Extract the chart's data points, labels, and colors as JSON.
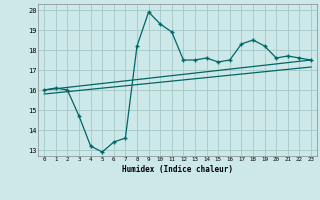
{
  "xlabel": "Humidex (Indice chaleur)",
  "ylabel": "",
  "xlim": [
    -0.5,
    23.5
  ],
  "ylim": [
    12.7,
    20.3
  ],
  "xticks": [
    0,
    1,
    2,
    3,
    4,
    5,
    6,
    7,
    8,
    9,
    10,
    11,
    12,
    13,
    14,
    15,
    16,
    17,
    18,
    19,
    20,
    21,
    22,
    23
  ],
  "yticks": [
    13,
    14,
    15,
    16,
    17,
    18,
    19,
    20
  ],
  "bg_color": "#cce8e8",
  "grid_color": "#aacccc",
  "line_color": "#006666",
  "line1_x": [
    0,
    1,
    2,
    3,
    4,
    5,
    6,
    7,
    8,
    9,
    10,
    11,
    12,
    13,
    14,
    15,
    16,
    17,
    18,
    19,
    20,
    21,
    22,
    23
  ],
  "line1_y": [
    16.0,
    16.1,
    16.0,
    14.7,
    13.2,
    12.9,
    13.4,
    13.6,
    18.2,
    19.9,
    19.3,
    18.9,
    17.5,
    17.5,
    17.6,
    17.4,
    17.5,
    18.3,
    18.5,
    18.2,
    17.6,
    17.7,
    17.6,
    17.5
  ],
  "line2_x": [
    0,
    23
  ],
  "line2_y": [
    16.0,
    17.5
  ],
  "line3_x": [
    0,
    23
  ],
  "line3_y": [
    15.8,
    17.15
  ]
}
